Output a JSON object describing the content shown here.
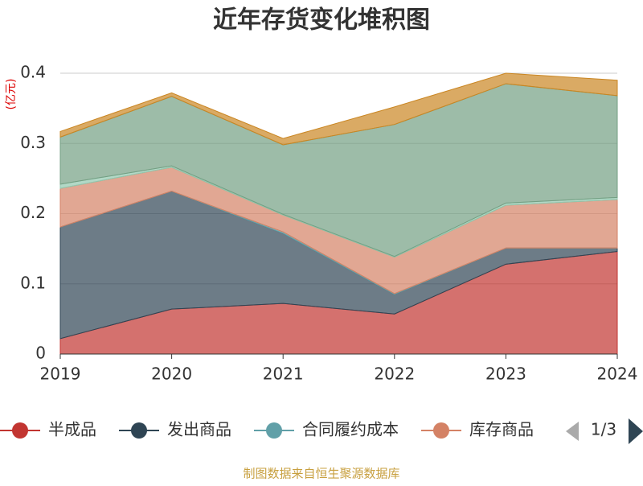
{
  "chart_data": {
    "type": "stacked_area",
    "title": "近年存货变化堆积图",
    "y_label": "(亿元)",
    "categories": [
      "2019",
      "2020",
      "2021",
      "2022",
      "2023",
      "2024"
    ],
    "series": [
      {
        "name": "半成品",
        "color": "#c23531",
        "values": [
          0.022,
          0.064,
          0.072,
          0.057,
          0.128,
          0.146
        ]
      },
      {
        "name": "发出商品",
        "color": "#2f4554",
        "values": [
          0.159,
          0.168,
          0.1,
          0.028,
          0.023,
          0.005
        ]
      },
      {
        "name": "合同履约成本",
        "color": "#61a0a8",
        "values": [
          0,
          0,
          0.002,
          0.001,
          0,
          0
        ]
      },
      {
        "name": "库存商品",
        "color": "#d48265",
        "values": [
          0.055,
          0.034,
          0.024,
          0.052,
          0.061,
          0.069
        ]
      },
      {
        "color": "#91c7ae",
        "values": [
          0.006,
          0.002,
          0.001,
          0.001,
          0.003,
          0.003
        ]
      },
      {
        "color": "#749f83",
        "values": [
          0.067,
          0.099,
          0.099,
          0.188,
          0.17,
          0.145
        ]
      },
      {
        "color": "#ca8622",
        "values": [
          0.008,
          0.005,
          0.009,
          0.025,
          0.015,
          0.022
        ]
      }
    ],
    "ylim": [
      0,
      0.4
    ],
    "yticks": [
      0,
      0.1,
      0.2,
      0.3,
      0.4
    ],
    "grid": true,
    "legend_page": "1/3",
    "source": "制图数据来自恒生聚源数据库"
  }
}
